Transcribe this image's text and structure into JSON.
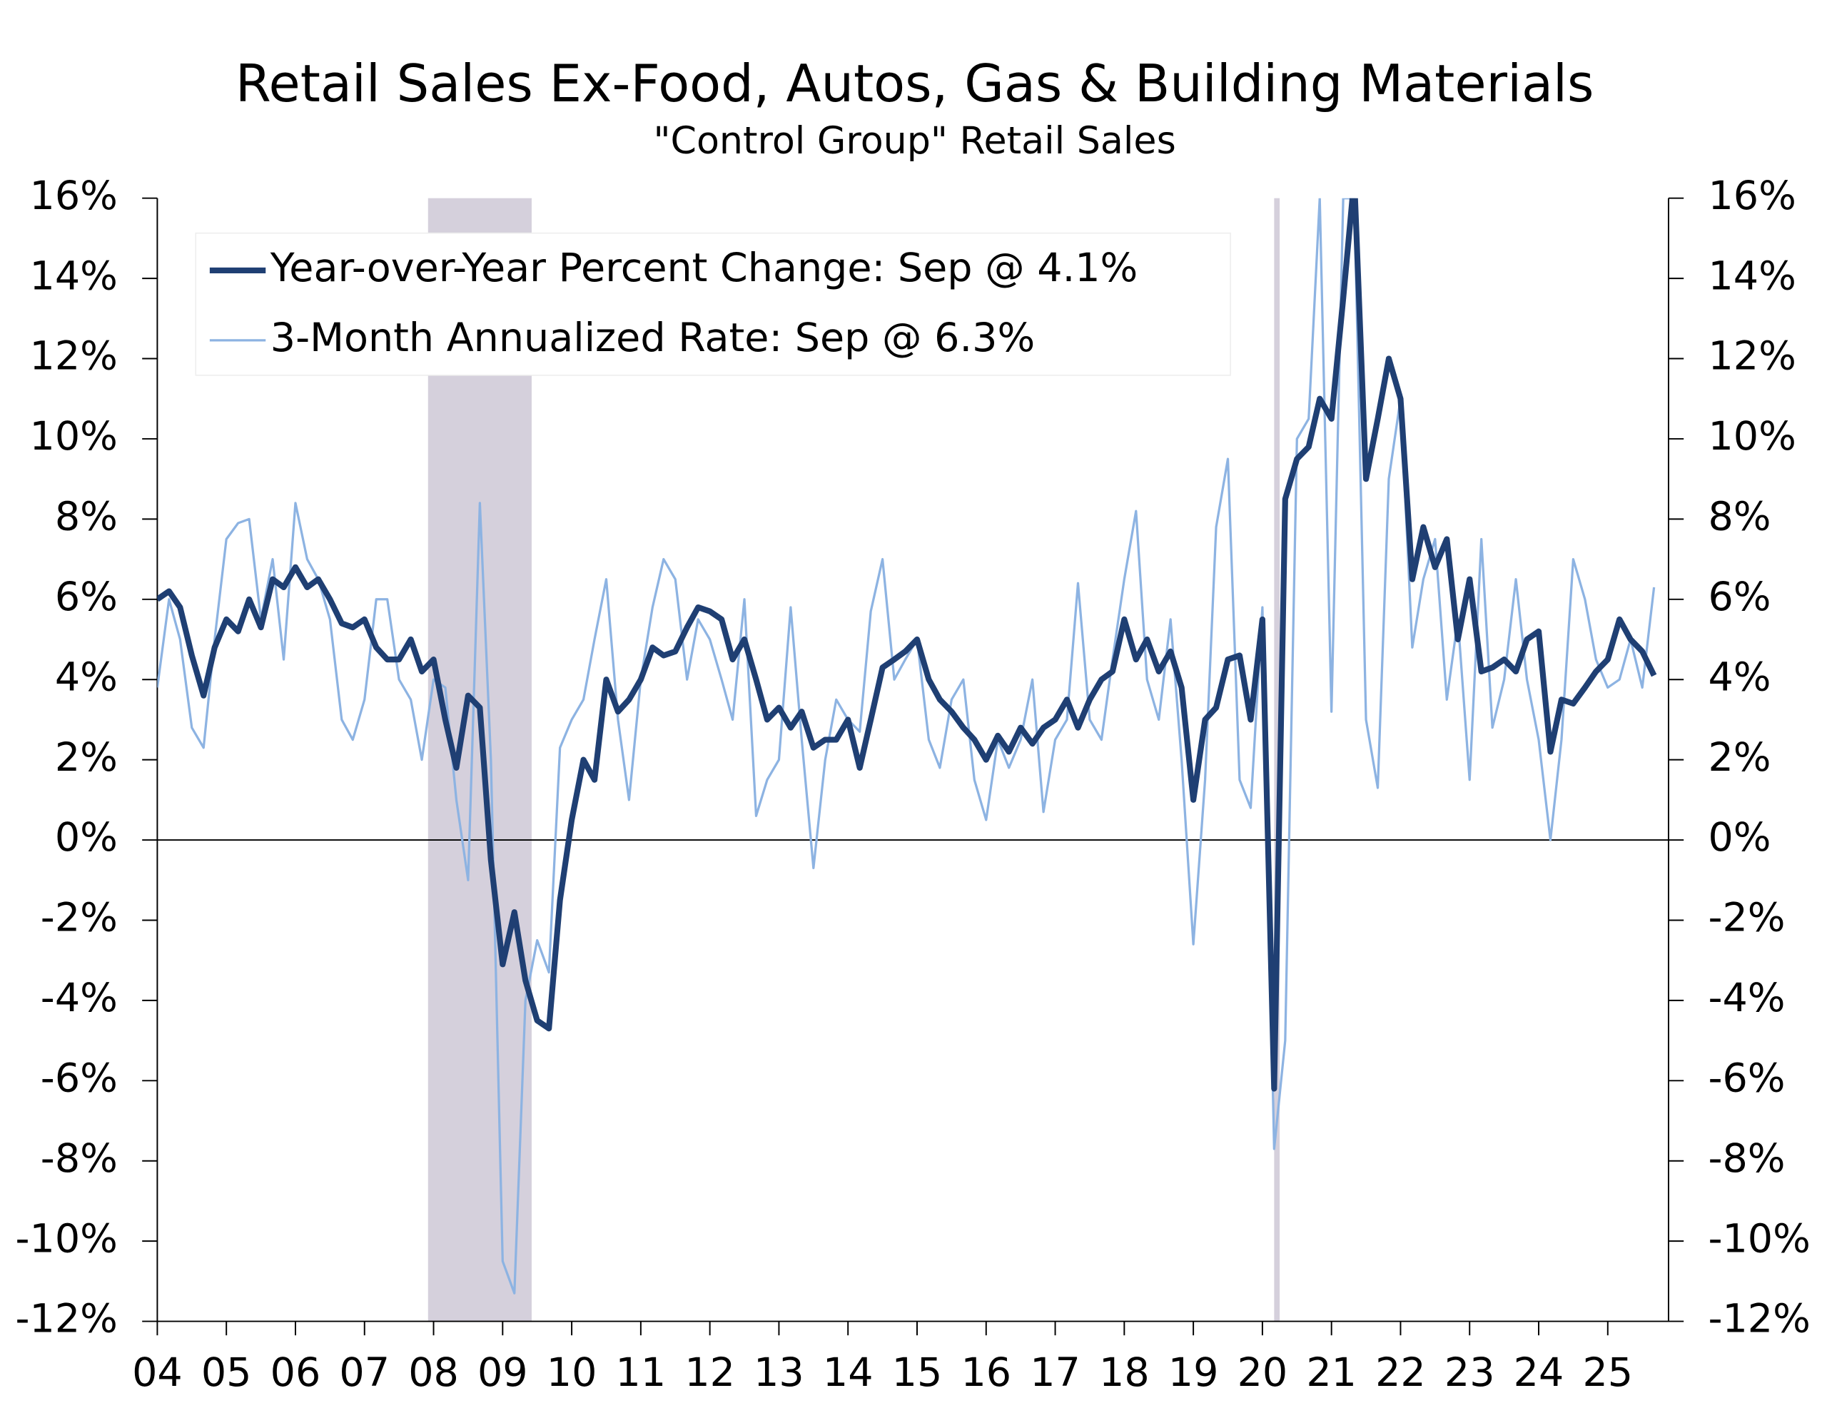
{
  "chart_data": {
    "type": "line",
    "title": "Retail Sales Ex-Food, Autos, Gas & Building Materials",
    "subtitle": "\"Control Group\" Retail Sales",
    "x": [
      2004,
      2004.17,
      2004.33,
      2004.5,
      2004.67,
      2004.83,
      2005,
      2005.17,
      2005.33,
      2005.5,
      2005.67,
      2005.83,
      2006,
      2006.17,
      2006.33,
      2006.5,
      2006.67,
      2006.83,
      2007,
      2007.17,
      2007.33,
      2007.5,
      2007.67,
      2007.83,
      2008,
      2008.17,
      2008.33,
      2008.5,
      2008.67,
      2008.83,
      2009,
      2009.17,
      2009.33,
      2009.5,
      2009.67,
      2009.83,
      2010,
      2010.17,
      2010.33,
      2010.5,
      2010.67,
      2010.83,
      2011,
      2011.17,
      2011.33,
      2011.5,
      2011.67,
      2011.83,
      2012,
      2012.17,
      2012.33,
      2012.5,
      2012.67,
      2012.83,
      2013,
      2013.17,
      2013.33,
      2013.5,
      2013.67,
      2013.83,
      2014,
      2014.17,
      2014.33,
      2014.5,
      2014.67,
      2014.83,
      2015,
      2015.17,
      2015.33,
      2015.5,
      2015.67,
      2015.83,
      2016,
      2016.17,
      2016.33,
      2016.5,
      2016.67,
      2016.83,
      2017,
      2017.17,
      2017.33,
      2017.5,
      2017.67,
      2017.83,
      2018,
      2018.17,
      2018.33,
      2018.5,
      2018.67,
      2018.83,
      2019,
      2019.17,
      2019.33,
      2019.5,
      2019.67,
      2019.83,
      2020,
      2020.17,
      2020.33,
      2020.5,
      2020.67,
      2020.83,
      2021,
      2021.17,
      2021.33,
      2021.5,
      2021.67,
      2021.83,
      2022,
      2022.17,
      2022.33,
      2022.5,
      2022.67,
      2022.83,
      2023,
      2023.17,
      2023.33,
      2023.5,
      2023.67,
      2023.83,
      2024,
      2024.17,
      2024.33,
      2024.5,
      2024.67,
      2024.83,
      2025,
      2025.17,
      2025.33,
      2025.5,
      2025.67
    ],
    "series": [
      {
        "name": "3-Month Annualized Rate: Sep @ 6.3%",
        "color": "#8db3e2",
        "width": 2,
        "values": [
          3.8,
          6.0,
          5.0,
          2.8,
          2.3,
          5.0,
          7.5,
          7.9,
          8.0,
          5.5,
          7.0,
          4.5,
          8.4,
          7.0,
          6.5,
          5.5,
          3.0,
          2.5,
          3.5,
          6.0,
          6.0,
          4.0,
          3.5,
          2.0,
          4.0,
          3.8,
          1.0,
          -1.0,
          8.4,
          2.0,
          -10.5,
          -11.3,
          -4.0,
          -2.5,
          -3.3,
          2.3,
          3.0,
          3.5,
          5.0,
          6.5,
          3.0,
          1.0,
          4.0,
          5.8,
          7.0,
          6.5,
          4.0,
          5.5,
          5.0,
          4.0,
          3.0,
          6.0,
          0.6,
          1.5,
          2.0,
          5.8,
          2.5,
          -0.7,
          2.0,
          3.5,
          3.0,
          2.7,
          5.7,
          7.0,
          4.0,
          4.5,
          5.0,
          2.5,
          1.8,
          3.5,
          4.0,
          1.5,
          0.5,
          2.5,
          1.8,
          2.5,
          4.0,
          0.7,
          2.5,
          3.0,
          6.4,
          3.0,
          2.5,
          4.5,
          6.5,
          8.2,
          4.0,
          3.0,
          5.5,
          2.0,
          -2.6,
          1.5,
          7.8,
          9.5,
          1.5,
          0.8,
          5.8,
          -7.7,
          -5.0,
          10.0,
          10.5,
          16.0,
          3.2,
          16.0,
          16.0,
          3.0,
          1.3,
          9.0,
          11.0,
          4.8,
          6.5,
          7.5,
          3.5,
          5.5,
          1.5,
          7.5,
          2.8,
          4.0,
          6.5,
          4.0,
          2.5,
          0.0,
          2.5,
          7.0,
          6.0,
          4.5,
          3.8,
          4.0,
          5.0,
          3.8,
          6.3
        ]
      },
      {
        "name": "Year-over-Year Percent Change: Sep @ 4.1%",
        "color": "#1f3f73",
        "width": 5,
        "values": [
          6.0,
          6.2,
          5.8,
          4.6,
          3.6,
          4.8,
          5.5,
          5.2,
          6.0,
          5.3,
          6.5,
          6.3,
          6.8,
          6.3,
          6.5,
          6.0,
          5.4,
          5.3,
          5.5,
          4.8,
          4.5,
          4.5,
          5.0,
          4.2,
          4.5,
          3.0,
          1.8,
          3.6,
          3.3,
          -0.5,
          -3.1,
          -1.8,
          -3.5,
          -4.5,
          -4.7,
          -1.5,
          0.5,
          2.0,
          1.5,
          4.0,
          3.2,
          3.5,
          4.0,
          4.8,
          4.6,
          4.7,
          5.3,
          5.8,
          5.7,
          5.5,
          4.5,
          5.0,
          4.0,
          3.0,
          3.3,
          2.8,
          3.2,
          2.3,
          2.5,
          2.5,
          3.0,
          1.8,
          3.0,
          4.3,
          4.5,
          4.7,
          5.0,
          4.0,
          3.5,
          3.2,
          2.8,
          2.5,
          2.0,
          2.6,
          2.2,
          2.8,
          2.4,
          2.8,
          3.0,
          3.5,
          2.8,
          3.5,
          4.0,
          4.2,
          5.5,
          4.5,
          5.0,
          4.2,
          4.7,
          3.8,
          1.0,
          3.0,
          3.3,
          4.5,
          4.6,
          3.0,
          5.5,
          -6.2,
          8.5,
          9.5,
          9.8,
          11.0,
          10.5,
          13.5,
          16.5,
          9.0,
          10.5,
          12.0,
          11.0,
          6.5,
          7.8,
          6.8,
          7.5,
          5.0,
          6.5,
          4.2,
          4.3,
          4.5,
          4.2,
          5.0,
          5.2,
          2.2,
          3.5,
          3.4,
          3.8,
          4.2,
          4.5,
          5.5,
          5.0,
          4.7,
          4.1
        ]
      }
    ],
    "legend_order": [
      1,
      0
    ],
    "legend": "upper left",
    "xlim": [
      2004,
      2025.88
    ],
    "xticks": [
      {
        "value": 2004,
        "label": "04"
      },
      {
        "value": 2005,
        "label": "05"
      },
      {
        "value": 2006,
        "label": "06"
      },
      {
        "value": 2007,
        "label": "07"
      },
      {
        "value": 2008,
        "label": "08"
      },
      {
        "value": 2009,
        "label": "09"
      },
      {
        "value": 2010,
        "label": "10"
      },
      {
        "value": 2011,
        "label": "11"
      },
      {
        "value": 2012,
        "label": "12"
      },
      {
        "value": 2013,
        "label": "13"
      },
      {
        "value": 2014,
        "label": "14"
      },
      {
        "value": 2015,
        "label": "15"
      },
      {
        "value": 2016,
        "label": "16"
      },
      {
        "value": 2017,
        "label": "17"
      },
      {
        "value": 2018,
        "label": "18"
      },
      {
        "value": 2019,
        "label": "19"
      },
      {
        "value": 2020,
        "label": "20"
      },
      {
        "value": 2021,
        "label": "21"
      },
      {
        "value": 2022,
        "label": "22"
      },
      {
        "value": 2023,
        "label": "23"
      },
      {
        "value": 2024,
        "label": "24"
      },
      {
        "value": 2025,
        "label": "25"
      }
    ],
    "ylim": [
      -12,
      16
    ],
    "yticks": [
      {
        "value": -12,
        "label": "-12%"
      },
      {
        "value": -10,
        "label": "-10%"
      },
      {
        "value": -8,
        "label": "-8%"
      },
      {
        "value": -6,
        "label": "-6%"
      },
      {
        "value": -4,
        "label": "-4%"
      },
      {
        "value": -2,
        "label": "-2%"
      },
      {
        "value": 0,
        "label": "0%"
      },
      {
        "value": 2,
        "label": "2%"
      },
      {
        "value": 4,
        "label": "4%"
      },
      {
        "value": 6,
        "label": "6%"
      },
      {
        "value": 8,
        "label": "8%"
      },
      {
        "value": 10,
        "label": "10%"
      },
      {
        "value": 12,
        "label": "12%"
      },
      {
        "value": 14,
        "label": "14%"
      },
      {
        "value": 16,
        "label": "16%"
      }
    ],
    "y2lim": [
      -12,
      16
    ],
    "y2ticks": [
      {
        "value": -12,
        "label": "-12%"
      },
      {
        "value": -10,
        "label": "-10%"
      },
      {
        "value": -8,
        "label": "-8%"
      },
      {
        "value": -6,
        "label": "-6%"
      },
      {
        "value": -4,
        "label": "-4%"
      },
      {
        "value": -2,
        "label": "-2%"
      },
      {
        "value": 0,
        "label": "0%"
      },
      {
        "value": 2,
        "label": "2%"
      },
      {
        "value": 4,
        "label": "4%"
      },
      {
        "value": 6,
        "label": "6%"
      },
      {
        "value": 8,
        "label": "8%"
      },
      {
        "value": 10,
        "label": "10%"
      },
      {
        "value": 12,
        "label": "12%"
      },
      {
        "value": 14,
        "label": "14%"
      },
      {
        "value": 16,
        "label": "16%"
      }
    ],
    "shaded_periods": [
      [
        2007.92,
        2009.42
      ],
      [
        2020.17,
        2020.25
      ]
    ],
    "shade_color": "#d5d0dc",
    "zero_line": true
  }
}
